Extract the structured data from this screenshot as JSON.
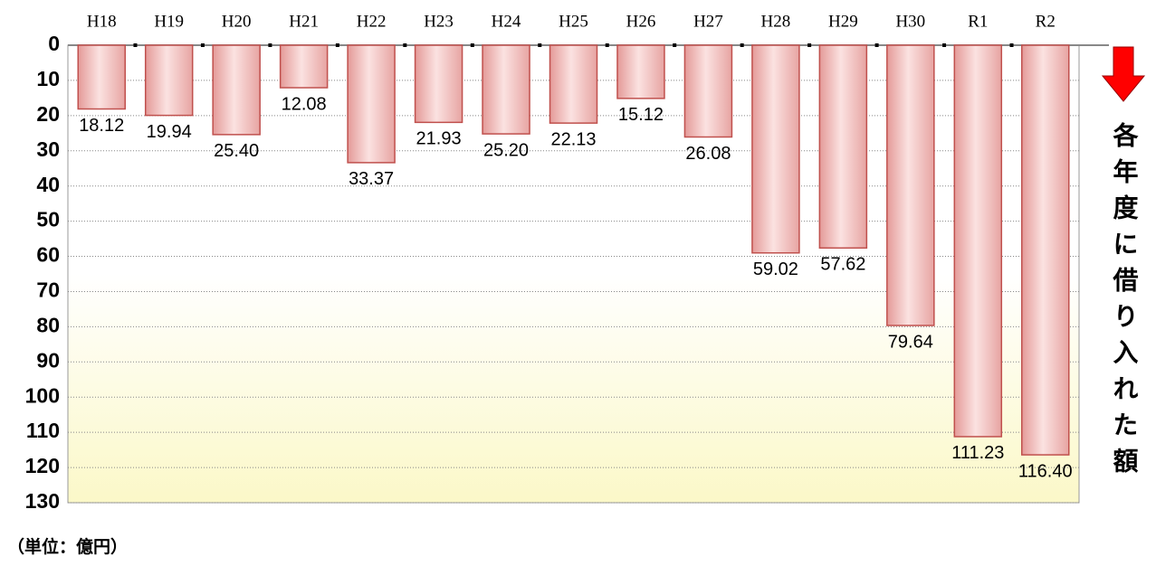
{
  "chart_data": {
    "type": "bar",
    "inverted": true,
    "y_axis_label": "各年度に借り入れた額",
    "note": "（単位：億円）",
    "categories": [
      "H18",
      "H19",
      "H20",
      "H21",
      "H22",
      "H23",
      "H24",
      "H25",
      "H26",
      "H27",
      "H28",
      "H29",
      "H30",
      "R1",
      "R2"
    ],
    "values": [
      18.12,
      19.94,
      25.4,
      12.08,
      33.37,
      21.93,
      25.2,
      22.13,
      15.12,
      26.08,
      59.02,
      57.62,
      79.64,
      111.23,
      116.4
    ],
    "value_labels": [
      "18.12",
      "19.94",
      "25.40",
      "12.08",
      "33.37",
      "21.93",
      "25.20",
      "22.13",
      "15.12",
      "26.08",
      "59.02",
      "57.62",
      "79.64",
      "111.23",
      "116.40"
    ],
    "color": "#c0504d",
    "ylim": [
      0,
      130
    ],
    "yticks": [
      0,
      10,
      20,
      30,
      40,
      50,
      60,
      70,
      80,
      90,
      100,
      110,
      120,
      130
    ],
    "grid": true
  }
}
